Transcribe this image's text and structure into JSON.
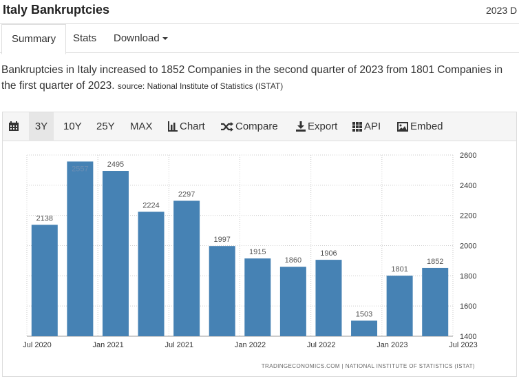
{
  "header": {
    "title": "Italy Bankruptcies",
    "date": "2023 D"
  },
  "tabs": [
    {
      "label": "Summary"
    },
    {
      "label": "Stats"
    },
    {
      "label": "Download"
    }
  ],
  "description": {
    "text": "Bankruptcies in Italy increased to 1852 Companies in the second quarter of 2023 from 1801 Companies in the first quarter of 2023.",
    "source": "source: National Institute of Statistics (ISTAT)"
  },
  "toolbar": {
    "range_3y": "3Y",
    "range_10y": "10Y",
    "range_25y": "25Y",
    "range_max": "MAX",
    "chart": "Chart",
    "compare": "Compare",
    "export": "Export",
    "api": "API",
    "embed": "Embed",
    "icons": [
      "calendar-icon",
      "bar-chart-icon",
      "shuffle-icon",
      "download-icon",
      "grid-icon",
      "image-icon"
    ]
  },
  "credit": "TRADINGECONOMICS.COM  |  NATIONAL INSTITUTE OF STATISTICS (ISTAT)",
  "chart_data": {
    "type": "bar",
    "title": "",
    "xlabel": "",
    "ylabel": "",
    "bar_color": "#4682b4",
    "categories": [
      "2020 Q3",
      "2020 Q4",
      "2021 Q1",
      "2021 Q2",
      "2021 Q3",
      "2021 Q4",
      "2022 Q1",
      "2022 Q2",
      "2022 Q3",
      "2022 Q4",
      "2023 Q1",
      "2023 Q2"
    ],
    "values": [
      2138,
      2557,
      2495,
      2224,
      2297,
      1997,
      1915,
      1860,
      1906,
      1503,
      1801,
      1852
    ],
    "x_tick_labels": [
      "Jul 2020",
      "Jan 2021",
      "Jul 2021",
      "Jan 2022",
      "Jul 2022",
      "Jan 2023",
      "Jul 2023"
    ],
    "y_ticks": [
      1400,
      1600,
      1800,
      2000,
      2200,
      2400,
      2600
    ],
    "ylim": [
      1400,
      2600
    ],
    "y_axis_position": "right",
    "grid": true
  }
}
